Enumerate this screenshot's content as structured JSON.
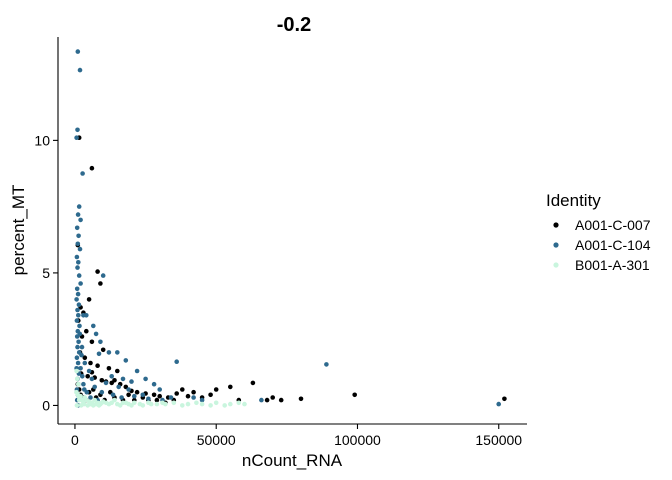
{
  "chart_data": {
    "type": "scatter",
    "title": "-0.2",
    "xlabel": "nCount_RNA",
    "ylabel": "percent_MT",
    "xlim": [
      -6000,
      160000
    ],
    "ylim": [
      -0.7,
      13.9
    ],
    "x_ticks": [
      0,
      50000,
      100000,
      150000
    ],
    "x_tick_labels": [
      "0",
      "50000",
      "100000",
      "150000"
    ],
    "y_ticks": [
      0,
      5,
      10
    ],
    "y_tick_labels": [
      "0",
      "5",
      "10"
    ],
    "grid": false,
    "legend": {
      "title": "Identity",
      "placement": "right",
      "entries": [
        "A001-C-007",
        "A001-C-104",
        "B001-A-301"
      ]
    },
    "series": [
      {
        "name": "A001-C-007",
        "color": "#000000",
        "points": [
          [
            1500,
            10.1
          ],
          [
            6000,
            8.95
          ],
          [
            1000,
            6.05
          ],
          [
            8000,
            5.05
          ],
          [
            5000,
            4.0
          ],
          [
            2000,
            3.7
          ],
          [
            3000,
            3.5
          ],
          [
            9000,
            4.6
          ],
          [
            1200,
            3.2
          ],
          [
            4000,
            2.8
          ],
          [
            2500,
            2.6
          ],
          [
            6000,
            2.4
          ],
          [
            10000,
            2.1
          ],
          [
            1800,
            2.0
          ],
          [
            3500,
            1.8
          ],
          [
            5500,
            1.6
          ],
          [
            8000,
            1.5
          ],
          [
            12000,
            1.4
          ],
          [
            15000,
            1.3
          ],
          [
            2200,
            1.2
          ],
          [
            4500,
            1.1
          ],
          [
            7000,
            1.05
          ],
          [
            9500,
            0.95
          ],
          [
            11000,
            0.9
          ],
          [
            13000,
            0.85
          ],
          [
            16000,
            0.8
          ],
          [
            18000,
            0.7
          ],
          [
            20000,
            0.55
          ],
          [
            22000,
            0.5
          ],
          [
            25000,
            0.45
          ],
          [
            28000,
            0.4
          ],
          [
            30000,
            0.35
          ],
          [
            33000,
            0.3
          ],
          [
            36000,
            0.45
          ],
          [
            38000,
            0.6
          ],
          [
            40000,
            0.35
          ],
          [
            42000,
            0.5
          ],
          [
            45000,
            0.3
          ],
          [
            48000,
            0.4
          ],
          [
            50000,
            0.6
          ],
          [
            55000,
            0.7
          ],
          [
            58000,
            0.2
          ],
          [
            63000,
            0.85
          ],
          [
            68000,
            0.2
          ],
          [
            70000,
            0.3
          ],
          [
            73000,
            0.2
          ],
          [
            80000,
            0.25
          ],
          [
            99000,
            0.4
          ],
          [
            152000,
            0.25
          ],
          [
            1000,
            0.8
          ],
          [
            1500,
            0.6
          ],
          [
            2000,
            0.4
          ],
          [
            3000,
            0.3
          ],
          [
            4000,
            0.2
          ],
          [
            5000,
            0.5
          ],
          [
            6500,
            0.6
          ],
          [
            7500,
            0.3
          ],
          [
            9000,
            0.4
          ],
          [
            10500,
            0.2
          ],
          [
            12500,
            0.5
          ],
          [
            14000,
            0.3
          ],
          [
            17000,
            0.2
          ],
          [
            19000,
            0.4
          ],
          [
            21000,
            0.2
          ],
          [
            24000,
            0.3
          ],
          [
            26000,
            0.2
          ],
          [
            29000,
            0.2
          ],
          [
            32000,
            0.1
          ],
          [
            35000,
            0.2
          ],
          [
            14000,
            0.95
          ],
          [
            6000,
            1.25
          ]
        ]
      },
      {
        "name": "A001-C-104",
        "color": "#2e6a8e",
        "points": [
          [
            1000,
            13.35
          ],
          [
            1800,
            12.65
          ],
          [
            900,
            10.4
          ],
          [
            600,
            10.1
          ],
          [
            2700,
            8.75
          ],
          [
            1500,
            7.5
          ],
          [
            1100,
            7.2
          ],
          [
            2000,
            7.0
          ],
          [
            800,
            6.7
          ],
          [
            1300,
            6.4
          ],
          [
            1000,
            6.1
          ],
          [
            1800,
            5.9
          ],
          [
            700,
            5.6
          ],
          [
            1200,
            5.4
          ],
          [
            900,
            5.2
          ],
          [
            1500,
            4.9
          ],
          [
            2000,
            4.6
          ],
          [
            800,
            4.4
          ],
          [
            1100,
            4.2
          ],
          [
            600,
            4.0
          ],
          [
            1400,
            3.8
          ],
          [
            900,
            3.6
          ],
          [
            1200,
            3.4
          ],
          [
            700,
            3.2
          ],
          [
            1600,
            3.0
          ],
          [
            1000,
            2.8
          ],
          [
            800,
            2.6
          ],
          [
            1300,
            2.4
          ],
          [
            900,
            2.2
          ],
          [
            1500,
            2.0
          ],
          [
            700,
            1.8
          ],
          [
            1100,
            1.6
          ],
          [
            600,
            1.4
          ],
          [
            1400,
            1.2
          ],
          [
            900,
            1.0
          ],
          [
            1200,
            0.8
          ],
          [
            700,
            0.6
          ],
          [
            1000,
            0.4
          ],
          [
            800,
            0.2
          ],
          [
            1100,
            0.0
          ],
          [
            10000,
            4.9
          ],
          [
            4000,
            3.4
          ],
          [
            6500,
            3.0
          ],
          [
            7500,
            2.7
          ],
          [
            3000,
            3.4
          ],
          [
            9000,
            2.4
          ],
          [
            12000,
            2.0
          ],
          [
            15000,
            2.0
          ],
          [
            18000,
            1.7
          ],
          [
            8500,
            1.95
          ],
          [
            36000,
            1.65
          ],
          [
            22000,
            1.3
          ],
          [
            25000,
            1.0
          ],
          [
            28000,
            0.8
          ],
          [
            30000,
            0.6
          ],
          [
            20000,
            0.9
          ],
          [
            17000,
            1.0
          ],
          [
            13000,
            1.1
          ],
          [
            11000,
            0.85
          ],
          [
            15500,
            0.7
          ],
          [
            19000,
            0.6
          ],
          [
            24000,
            0.4
          ],
          [
            34000,
            0.3
          ],
          [
            42000,
            0.3
          ],
          [
            45000,
            0.2
          ],
          [
            66000,
            0.2
          ],
          [
            89000,
            1.55
          ],
          [
            150000,
            0.05
          ],
          [
            2500,
            2.2
          ],
          [
            3500,
            1.6
          ],
          [
            5000,
            1.3
          ],
          [
            6000,
            1.0
          ],
          [
            7000,
            0.7
          ],
          [
            4200,
            0.5
          ],
          [
            5500,
            0.3
          ],
          [
            8000,
            0.2
          ],
          [
            3000,
            0.8
          ],
          [
            2000,
            1.4
          ],
          [
            9500,
            0.5
          ],
          [
            13500,
            0.4
          ],
          [
            16500,
            0.3
          ],
          [
            21000,
            0.35
          ],
          [
            26000,
            0.25
          ],
          [
            31000,
            0.2
          ],
          [
            1700,
            2.7
          ],
          [
            2300,
            1.9
          ],
          [
            2600,
            1.1
          ],
          [
            3300,
            0.6
          ],
          [
            1900,
            0.3
          ]
        ]
      },
      {
        "name": "B001-A-301",
        "color": "#c9f5de",
        "points": [
          [
            500,
            0.5
          ],
          [
            1000,
            0.4
          ],
          [
            1500,
            0.3
          ],
          [
            2000,
            0.35
          ],
          [
            2500,
            0.2
          ],
          [
            3000,
            0.1
          ],
          [
            3500,
            0.3
          ],
          [
            4000,
            0.2
          ],
          [
            5000,
            0.15
          ],
          [
            6000,
            0.1
          ],
          [
            7000,
            0.2
          ],
          [
            8000,
            0.1
          ],
          [
            9000,
            0.05
          ],
          [
            10000,
            0.15
          ],
          [
            11000,
            0.1
          ],
          [
            12000,
            0.05
          ],
          [
            13000,
            0.1
          ],
          [
            14000,
            0.2
          ],
          [
            15000,
            0.05
          ],
          [
            17000,
            0.1
          ],
          [
            19000,
            0.05
          ],
          [
            21000,
            0.1
          ],
          [
            23000,
            0.05
          ],
          [
            26000,
            0.1
          ],
          [
            29000,
            0.05
          ],
          [
            32000,
            0.05
          ],
          [
            35000,
            0.1
          ],
          [
            40000,
            0.05
          ],
          [
            45000,
            0.05
          ],
          [
            50000,
            0.1
          ],
          [
            55000,
            0.05
          ],
          [
            60000,
            0.05
          ],
          [
            800,
            1.0
          ],
          [
            1200,
            0.8
          ],
          [
            600,
            1.3
          ],
          [
            1500,
            0.2
          ],
          [
            700,
            0.0
          ],
          [
            2200,
            0.0
          ],
          [
            3200,
            0.05
          ],
          [
            4500,
            0.0
          ],
          [
            5500,
            0.05
          ],
          [
            6500,
            0.0
          ],
          [
            7500,
            0.05
          ],
          [
            8500,
            0.0
          ],
          [
            9500,
            0.1
          ],
          [
            16000,
            0.0
          ],
          [
            18000,
            0.1
          ],
          [
            20000,
            0.0
          ],
          [
            24000,
            0.0
          ],
          [
            27000,
            0.05
          ],
          [
            31000,
            0.1
          ],
          [
            38000,
            0.0
          ],
          [
            43000,
            0.1
          ],
          [
            48000,
            0.0
          ],
          [
            53000,
            0.0
          ],
          [
            58000,
            0.1
          ]
        ]
      }
    ]
  }
}
